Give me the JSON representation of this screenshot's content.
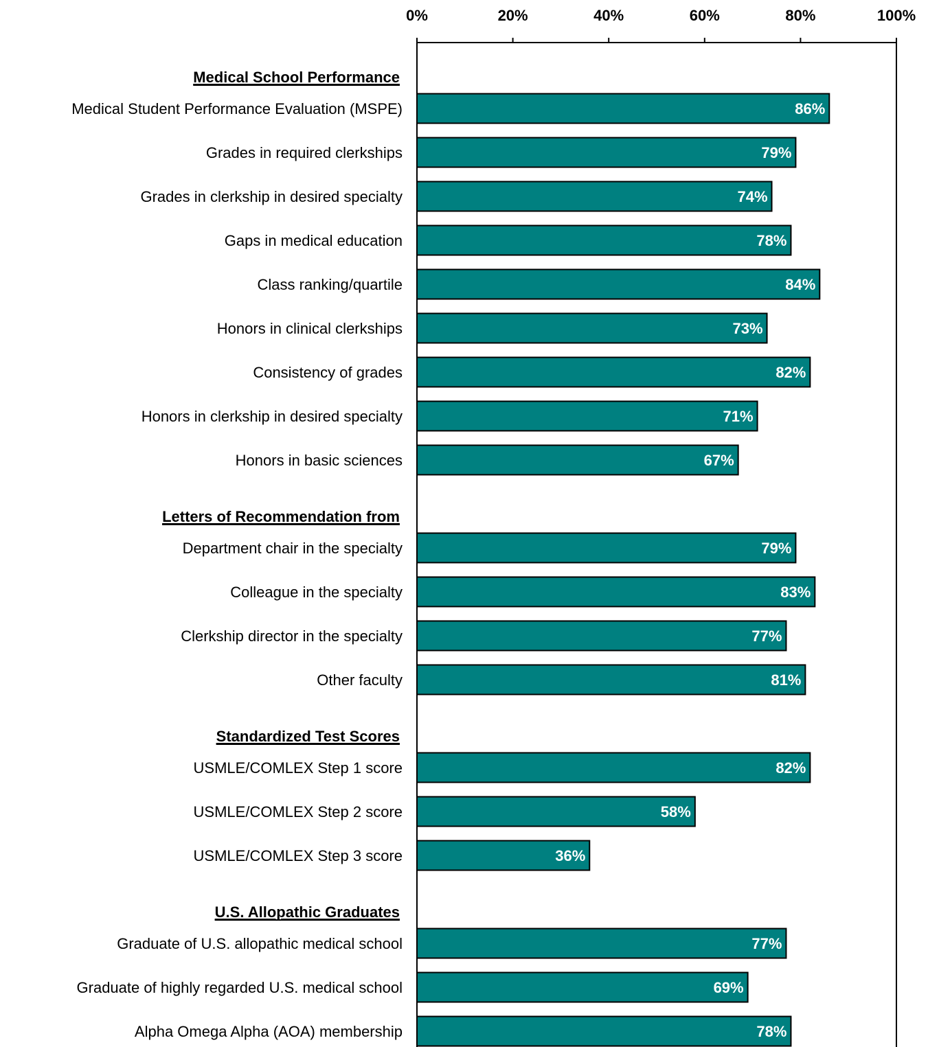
{
  "colors": {
    "bar": "#008080",
    "bar_stroke": "#000000",
    "axis": "#000000"
  },
  "chart_data": {
    "type": "bar",
    "orientation": "horizontal",
    "title": "",
    "xlabel": "",
    "ylabel": "",
    "xlim": [
      0,
      100
    ],
    "x_ticks": [
      "0%",
      "20%",
      "40%",
      "60%",
      "80%",
      "100%"
    ],
    "x_axis_position": "top",
    "grid": false,
    "legend": "none",
    "groups": [
      {
        "name": "Medical School Performance",
        "items": [
          {
            "label": "Medical Student Performance Evaluation (MSPE)",
            "value": 86,
            "value_label": "86%"
          },
          {
            "label": "Grades in required clerkships",
            "value": 79,
            "value_label": "79%"
          },
          {
            "label": "Grades in clerkship in desired specialty",
            "value": 74,
            "value_label": "74%"
          },
          {
            "label": "Gaps in medical education",
            "value": 78,
            "value_label": "78%"
          },
          {
            "label": "Class ranking/quartile",
            "value": 84,
            "value_label": "84%"
          },
          {
            "label": "Honors in clinical clerkships",
            "value": 73,
            "value_label": "73%"
          },
          {
            "label": "Consistency of grades",
            "value": 82,
            "value_label": "82%"
          },
          {
            "label": "Honors in clerkship in desired specialty",
            "value": 71,
            "value_label": "71%"
          },
          {
            "label": "Honors in basic sciences",
            "value": 67,
            "value_label": "67%"
          }
        ]
      },
      {
        "name": "Letters of Recommendation from",
        "items": [
          {
            "label": "Department chair in the specialty",
            "value": 79,
            "value_label": "79%"
          },
          {
            "label": "Colleague in the specialty",
            "value": 83,
            "value_label": "83%"
          },
          {
            "label": "Clerkship director in the specialty",
            "value": 77,
            "value_label": "77%"
          },
          {
            "label": "Other faculty",
            "value": 81,
            "value_label": "81%"
          }
        ]
      },
      {
        "name": "Standardized Test Scores",
        "items": [
          {
            "label": "USMLE/COMLEX Step 1 score",
            "value": 82,
            "value_label": "82%"
          },
          {
            "label": "USMLE/COMLEX Step 2 score",
            "value": 58,
            "value_label": "58%"
          },
          {
            "label": "USMLE/COMLEX Step 3 score",
            "value": 36,
            "value_label": "36%"
          }
        ]
      },
      {
        "name": "U.S. Allopathic Graduates",
        "items": [
          {
            "label": "Graduate of U.S. allopathic medical school",
            "value": 77,
            "value_label": "77%"
          },
          {
            "label": "Graduate of highly regarded U.S. medical school",
            "value": 69,
            "value_label": "69%"
          },
          {
            "label": "Alpha Omega Alpha (AOA) membership",
            "value": 78,
            "value_label": "78%"
          }
        ]
      }
    ]
  }
}
